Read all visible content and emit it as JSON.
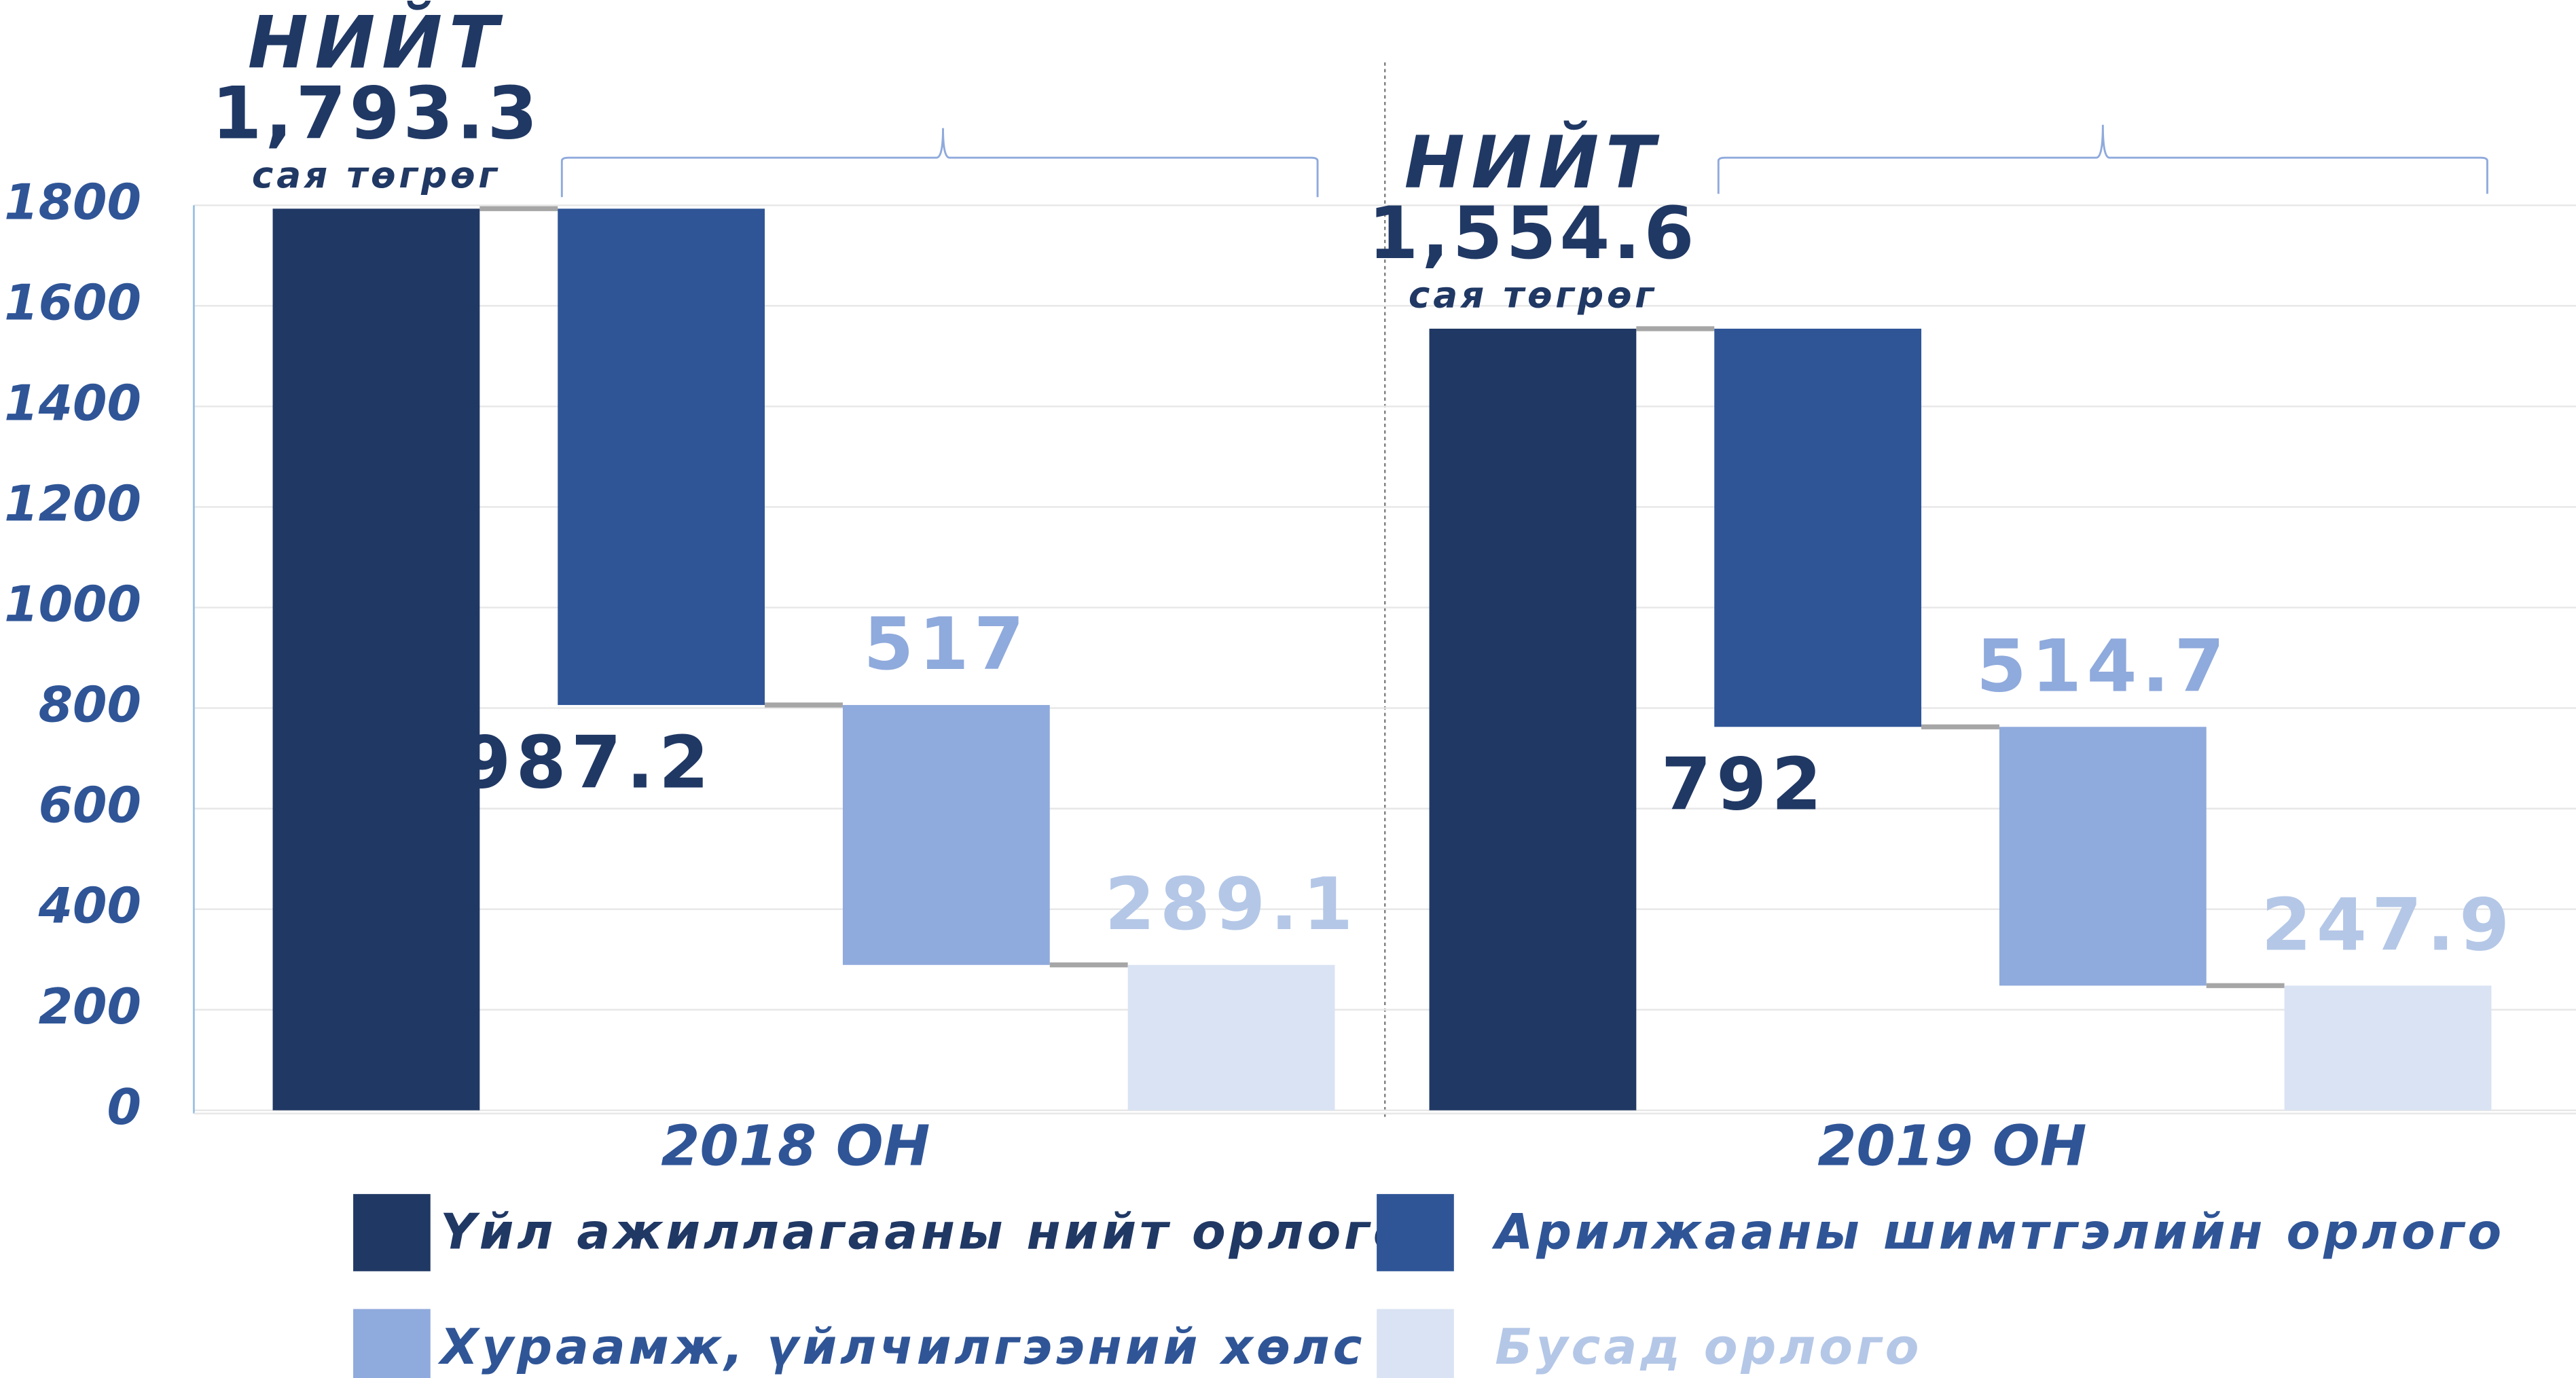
{
  "chart_data": {
    "type": "waterfall",
    "categories": [
      "2018 ОН",
      "2019 ОН"
    ],
    "total_prefix": "НИЙТ",
    "total_unit": "сая төгрөг",
    "series": [
      {
        "name": "Үйл ажиллагааны нийт орлого",
        "color": "#203864",
        "label_color": "#203864",
        "legend_color": "#203864",
        "label_position": "above",
        "values": [
          1793.3,
          1554.6
        ],
        "value_labels": [
          "1,793.3",
          "1,554.6"
        ]
      },
      {
        "name": "Арилжааны шимтгэлийн орлого",
        "color": "#2f5597",
        "label_color": "#203864",
        "legend_color": "#2f5597",
        "label_position": "below",
        "values": [
          987.2,
          792
        ]
      },
      {
        "name": "Хураамж, үйлчилгээний хөлс",
        "color": "#8faadc",
        "label_color": "#8faadc",
        "legend_color": "#2f5597",
        "label_position": "above",
        "values": [
          517,
          514.7
        ]
      },
      {
        "name": "Бусад орлого",
        "color": "#dae3f3",
        "label_color": "#b4c7e7",
        "legend_color": "#b4c7e7",
        "label_position": "above",
        "values": [
          289.1,
          247.9
        ]
      }
    ],
    "ylim": [
      0,
      1800
    ],
    "yticks": [
      0,
      200,
      400,
      600,
      800,
      1000,
      1200,
      1400,
      1600,
      1800
    ],
    "grid": true
  }
}
